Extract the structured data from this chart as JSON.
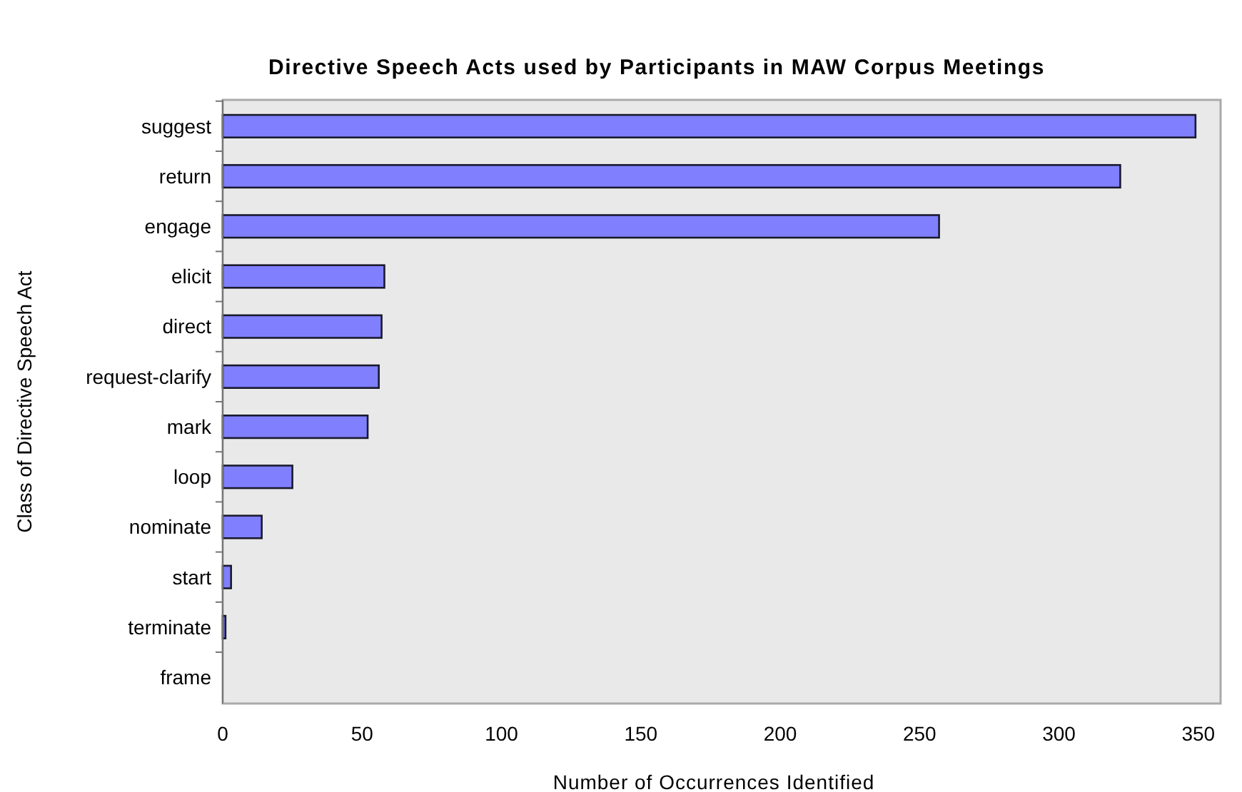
{
  "chart_data": {
    "type": "bar",
    "orientation": "horizontal",
    "title": "Directive Speech Acts used by Participants in MAW  Corpus Meetings",
    "xlabel": "Number of Occurrences Identified",
    "ylabel": "Class of Directive Speech Act",
    "categories": [
      "suggest",
      "return",
      "engage",
      "elicit",
      "direct",
      "request-clarify",
      "mark",
      "loop",
      "nominate",
      "start",
      "terminate",
      "frame"
    ],
    "values": [
      349,
      322,
      257,
      58,
      57,
      56,
      52,
      25,
      14,
      3,
      1,
      0
    ],
    "color": "#8080ff",
    "xlim": [
      0,
      358
    ],
    "xticks": [
      0,
      50,
      100,
      150,
      200,
      250,
      300,
      350
    ],
    "grid": false
  }
}
